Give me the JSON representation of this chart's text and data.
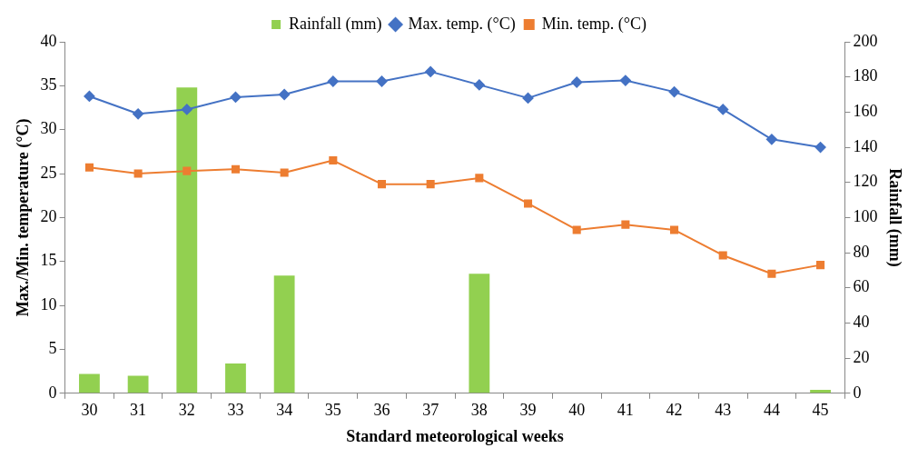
{
  "chart_data": {
    "type": "line",
    "xlabel": "Standard meteorological weeks",
    "ylabel": "Max./Min. temperature (°C)",
    "y2label": "Rainfall (mm)",
    "categories": [
      "30",
      "31",
      "32",
      "33",
      "34",
      "35",
      "36",
      "37",
      "38",
      "39",
      "40",
      "41",
      "42",
      "43",
      "44",
      "45"
    ],
    "series": [
      {
        "name": "Rainfall (mm)",
        "type": "bar",
        "axis": "y2",
        "color": "#92d050",
        "values": [
          11,
          10,
          174,
          17,
          67,
          0,
          0,
          0,
          68,
          0,
          0,
          0,
          0,
          0,
          0,
          2
        ]
      },
      {
        "name": "Max. temp. (°C)",
        "marker": "diamond",
        "color": "#4472c4",
        "values": [
          33.8,
          31.8,
          32.3,
          33.7,
          34.0,
          35.5,
          35.5,
          36.6,
          35.1,
          33.6,
          35.4,
          35.6,
          34.3,
          32.3,
          28.9,
          28.0
        ]
      },
      {
        "name": "Min. temp. (°C)",
        "marker": "square",
        "color": "#ed7d31",
        "values": [
          25.7,
          25.0,
          25.3,
          25.5,
          25.1,
          26.5,
          23.8,
          23.8,
          24.5,
          21.6,
          18.6,
          19.2,
          18.6,
          15.7,
          13.6,
          14.6
        ]
      }
    ],
    "ylim": [
      0,
      40
    ],
    "yticks": [
      0,
      5,
      10,
      15,
      20,
      25,
      30,
      35,
      40
    ],
    "y2lim": [
      0,
      200
    ],
    "y2ticks": [
      0,
      20,
      40,
      60,
      80,
      100,
      120,
      140,
      160,
      180,
      200
    ],
    "grid": false,
    "legend": "top",
    "line_style": "solid"
  }
}
